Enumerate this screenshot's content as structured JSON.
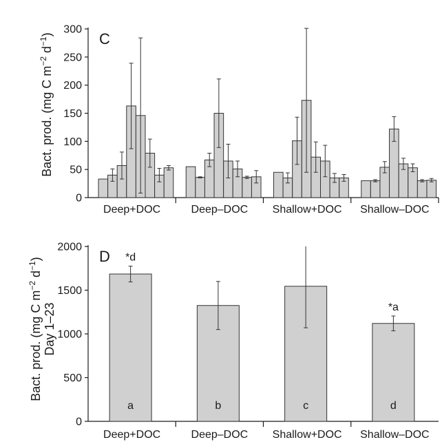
{
  "chart_data": [
    {
      "panel": "C",
      "type": "bar",
      "ylabel": "Bact. prod. (mg C m−2 d−1)",
      "ylim": [
        0,
        300
      ],
      "yticks": [
        0,
        50,
        100,
        150,
        200,
        250,
        300
      ],
      "groups": [
        {
          "label": "Deep+DOC",
          "values": [
            33,
            40,
            57,
            163,
            146,
            79,
            40,
            53
          ],
          "err": [
            0,
            11,
            24,
            76,
            138,
            25,
            12,
            4
          ]
        },
        {
          "label": "Deep–DOC",
          "values": [
            55,
            36,
            67,
            150,
            65,
            51,
            36,
            37
          ],
          "err": [
            0,
            1,
            12,
            61,
            30,
            14,
            2,
            11
          ]
        },
        {
          "label": "Shallow+DOC",
          "values": [
            45,
            35,
            101,
            173,
            72,
            65,
            35,
            35
          ],
          "err": [
            0,
            9,
            42,
            128,
            27,
            28,
            8,
            6
          ]
        },
        {
          "label": "Shallow–DOC",
          "values": [
            30,
            30,
            54,
            122,
            60,
            53,
            30,
            31
          ],
          "err": [
            0,
            2,
            10,
            22,
            10,
            7,
            2,
            3
          ]
        }
      ]
    },
    {
      "panel": "D",
      "type": "bar",
      "ylabel_line1": "Bact. prod. (mg C m−2 d−1)",
      "ylabel_line2": "Day 1–23",
      "ylim": [
        0,
        2000
      ],
      "yticks": [
        0,
        500,
        1000,
        1500,
        2000
      ],
      "categories": [
        "Deep+DOC",
        "Deep–DOC",
        "Shallow+DOC",
        "Shallow–DOC"
      ],
      "values": [
        1685,
        1325,
        1545,
        1120
      ],
      "err": [
        90,
        275,
        475,
        85
      ],
      "bar_letters": [
        "a",
        "b",
        "c",
        "d"
      ],
      "annotations": [
        "*d",
        "",
        "",
        "*a"
      ]
    }
  ]
}
